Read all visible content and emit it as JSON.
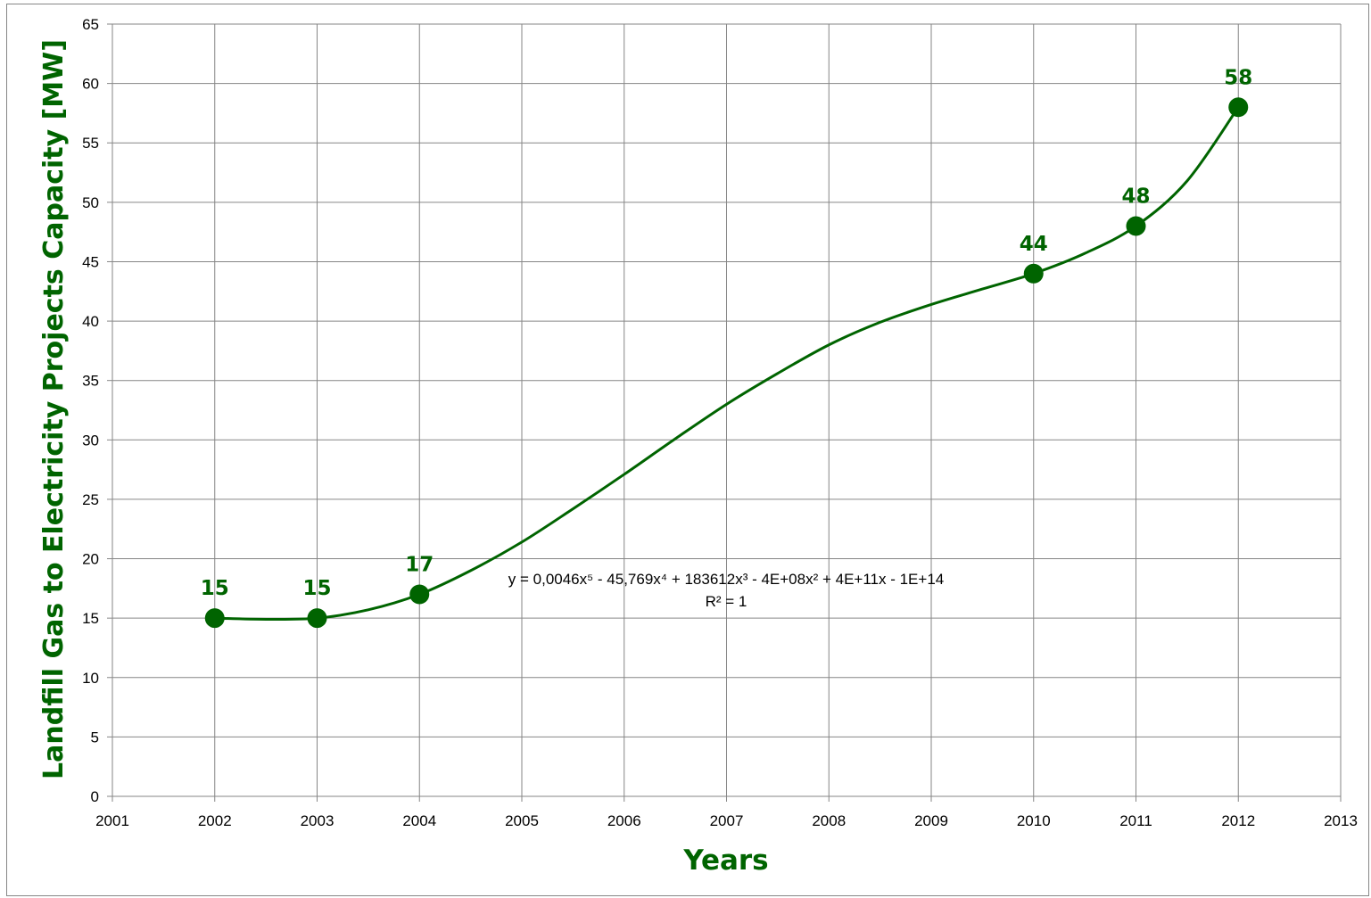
{
  "chart_data": {
    "type": "scatter",
    "title": "",
    "xlabel": "Years",
    "ylabel": "Landfill Gas to Electricity  Projects Capacity [MW]",
    "xlim": [
      2001,
      2013
    ],
    "ylim": [
      0,
      65
    ],
    "x_ticks": [
      "2001",
      "2002",
      "2003",
      "2004",
      "2005",
      "2006",
      "2007",
      "2008",
      "2009",
      "2010",
      "2011",
      "2012",
      "2013"
    ],
    "y_ticks": [
      "0",
      "5",
      "10",
      "15",
      "20",
      "25",
      "30",
      "35",
      "40",
      "45",
      "50",
      "55",
      "60",
      "65"
    ],
    "grid": true,
    "legend": "none",
    "series": [
      {
        "x": [
          2002,
          2003,
          2004,
          2010,
          2011,
          2012
        ],
        "y": [
          15,
          15,
          17,
          44,
          48,
          58
        ],
        "data_labels": [
          "15",
          "15",
          "17",
          "44",
          "48",
          "58"
        ],
        "color": "#006400"
      }
    ],
    "trendline": {
      "type": "polynomial",
      "order": 5,
      "equation_label": "y = 0,0046x⁵ - 45,769x⁴ + 183612x³ - 4E+08x² + 4E+11x - 1E+14",
      "r2_label": "R² = 1",
      "curve_points": [
        [
          2002,
          15
        ],
        [
          2002.5,
          14.9
        ],
        [
          2003,
          15
        ],
        [
          2003.5,
          15.7
        ],
        [
          2004,
          17
        ],
        [
          2004.5,
          19
        ],
        [
          2005,
          21.4
        ],
        [
          2005.5,
          24.2
        ],
        [
          2006,
          27.1
        ],
        [
          2006.5,
          30.1
        ],
        [
          2007,
          33
        ],
        [
          2007.5,
          35.6
        ],
        [
          2008,
          38
        ],
        [
          2008.5,
          39.9
        ],
        [
          2009,
          41.4
        ],
        [
          2009.5,
          42.7
        ],
        [
          2010,
          44
        ],
        [
          2010.5,
          45.7
        ],
        [
          2011,
          48
        ],
        [
          2011.5,
          51.8
        ],
        [
          2012,
          58
        ]
      ]
    },
    "grid_color": "#868686",
    "accent_color": "#006400"
  }
}
